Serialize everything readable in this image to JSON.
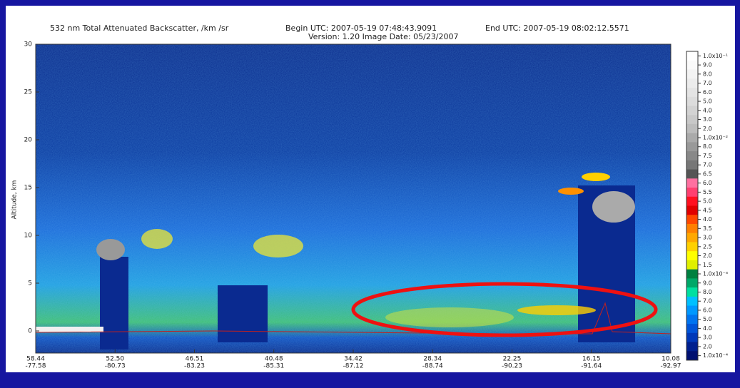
{
  "title": {
    "product": "532 nm Total Attenuated Backscatter, /km /sr",
    "begin": "Begin UTC: 2007-05-19 07:48:43.9091",
    "end": "End UTC: 2007-05-19 08:02:12.5571",
    "version": "Version: 1.20  Image Date: 05/23/2007"
  },
  "y_axis": {
    "label": "Altitude, km",
    "ticks": [
      "0",
      "5",
      "10",
      "15",
      "20",
      "25",
      "30"
    ]
  },
  "x_axis": {
    "latitudes": [
      "58.44",
      "52.50",
      "46.51",
      "40.48",
      "34.42",
      "28.34",
      "22.25",
      "16.15",
      "10.08"
    ],
    "longitudes": [
      "-77.58",
      "-80.73",
      "-83.23",
      "-85.31",
      "-87.12",
      "-88.74",
      "-90.23",
      "-91.64",
      "-92.97"
    ]
  },
  "colorbar": {
    "labels": [
      "1.0x10⁻¹",
      "9.0",
      "8.0",
      "7.0",
      "6.0",
      "5.0",
      "4.0",
      "3.0",
      "2.0",
      "1.0x10⁻²",
      "8.0",
      "7.5",
      "7.0",
      "6.5",
      "6.0",
      "5.5",
      "5.0",
      "4.5",
      "4.0",
      "3.5",
      "3.0",
      "2.5",
      "2.0",
      "1.5",
      "1.0x10⁻³",
      "9.0",
      "8.0",
      "7.0",
      "6.0",
      "5.0",
      "4.0",
      "3.0",
      "2.0",
      "1.0x10⁻⁴"
    ],
    "colors": [
      "#ffffff",
      "#fafafa",
      "#f3f3f3",
      "#ececec",
      "#e4e4e4",
      "#dcdcdc",
      "#d2d2d2",
      "#c8c8c8",
      "#bcbcbc",
      "#aaaaaa",
      "#999999",
      "#888888",
      "#777777",
      "#555555",
      "#ff70a0",
      "#ff4070",
      "#ff1020",
      "#e00000",
      "#ff4800",
      "#ff8000",
      "#ffa800",
      "#ffd000",
      "#ffff00",
      "#e0f000",
      "#008040",
      "#00a868",
      "#00e0a0",
      "#00c0ff",
      "#0098ff",
      "#0074f0",
      "#0054d8",
      "#0038b8",
      "#00208e",
      "#001070"
    ]
  }
}
